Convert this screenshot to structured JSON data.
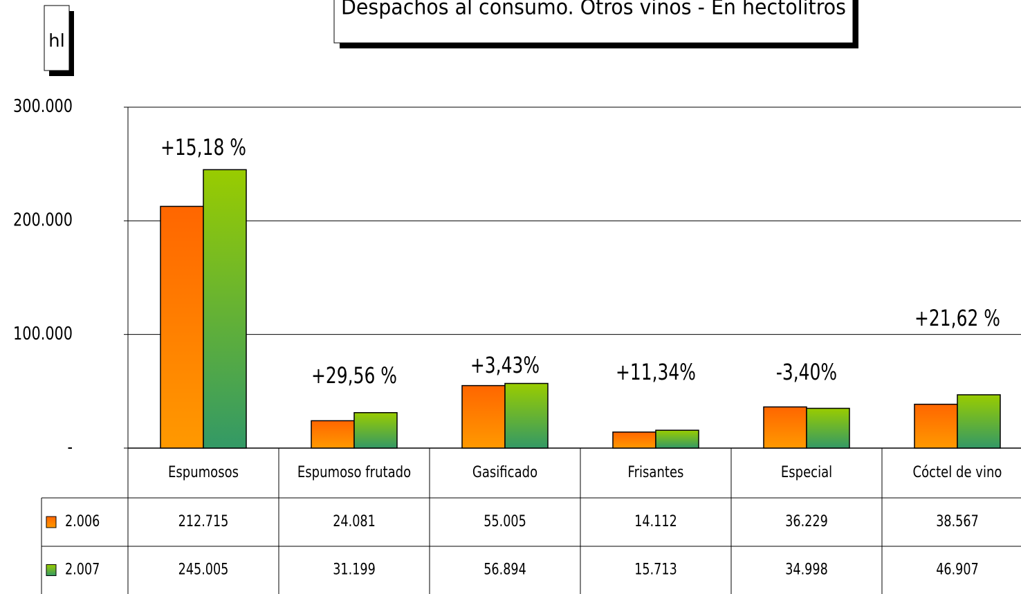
{
  "chart_data": {
    "type": "bar",
    "title": "Despachos al consumo. Otros vinos - En hectolitros",
    "y_label": "hl",
    "categories": [
      "Espumosos",
      "Espumoso frutado",
      "Gasificado",
      "Frisantes",
      "Especial",
      "Cóctel de vino"
    ],
    "series": [
      {
        "name": "2.006",
        "color": "#ff7a00",
        "values": [
          212715,
          24081,
          55005,
          14112,
          36229,
          38567
        ],
        "value_labels": [
          "212.715",
          "24.081",
          "55.005",
          "14.112",
          "36.229",
          "38.567"
        ]
      },
      {
        "name": "2.007",
        "color": "#66b32a",
        "values": [
          245005,
          31199,
          56894,
          15713,
          34998,
          46907
        ],
        "value_labels": [
          "245.005",
          "31.199",
          "56.894",
          "15.713",
          "34.998",
          "46.907"
        ]
      }
    ],
    "annotations": [
      "+15,18 %",
      "+29,56 %",
      "+3,43%",
      "+11,34%",
      "-3,40%",
      "+21,62 %"
    ],
    "ylim": [
      0,
      300000
    ],
    "yticks": [
      {
        "value": 0,
        "label": "-"
      },
      {
        "value": 100000,
        "label": "100.000"
      },
      {
        "value": 200000,
        "label": "200.000"
      },
      {
        "value": 300000,
        "label": "300.000"
      }
    ],
    "grid": true
  }
}
